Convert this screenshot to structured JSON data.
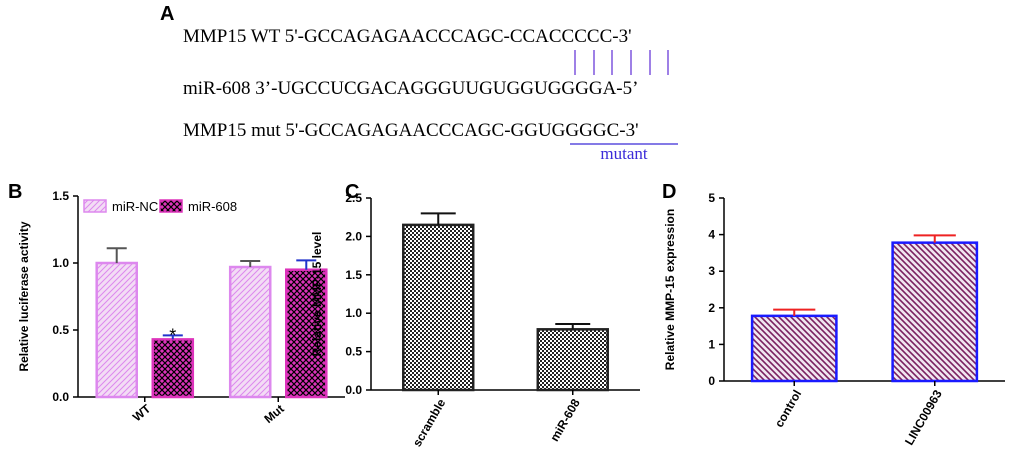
{
  "panel_a": {
    "label": "A",
    "lines": [
      "MMP15 WT 5'-GCCAGAGAACCCAGC-CCACCCCC-3'",
      "miR-608 3’-UGCCUCGACAGGGUUGUGGUGGGGA-5’",
      "MMP15 mut 5'-GCCAGAGAACCCAGC-GGUGGGGC-3'"
    ],
    "mutant_label": "mutant"
  },
  "chart_data": [
    {
      "type": "bar",
      "panel": "B",
      "ylabel": "Relative luciferase activity",
      "categories": [
        "WT",
        "Mut"
      ],
      "series": [
        {
          "name": "miR-NC",
          "color": "#dd88ee",
          "pattern": "diagonal",
          "error_color": "#555555",
          "values": [
            1.0,
            0.97
          ],
          "errors": [
            0.11,
            0.045
          ]
        },
        {
          "name": "miR-608",
          "color": "#dd33bb",
          "pattern": "cross",
          "error_color": "#2233cc",
          "values": [
            0.43,
            0.95
          ],
          "errors": [
            0.03,
            0.07
          ],
          "annotations": [
            "*",
            null
          ]
        }
      ],
      "ylim": [
        0,
        1.5
      ],
      "yticks": [
        {
          "value": 0,
          "label": "0.0"
        },
        0.5,
        {
          "value": 1,
          "label": "1.0"
        },
        1.5
      ],
      "legend": "top"
    },
    {
      "type": "bar",
      "panel": "C",
      "ylabel": "Relative MMP-15 level",
      "categories": [
        "scramble",
        "miR-608"
      ],
      "series": [
        {
          "color": "#222222",
          "pattern": "checker",
          "error_color": "#111111",
          "values": [
            2.15,
            0.79
          ],
          "errors": [
            0.15,
            0.07
          ]
        }
      ],
      "ylim": [
        0,
        2.5
      ],
      "yticks": [
        {
          "value": 0,
          "label": "0.0"
        },
        0.5,
        {
          "value": 1,
          "label": "1.0"
        },
        1.5,
        {
          "value": 2,
          "label": "2.0"
        },
        2.5
      ]
    },
    {
      "type": "bar",
      "panel": "D",
      "ylabel": "Relative MMP-15 expression",
      "categories": [
        "control",
        "LINC00963"
      ],
      "series": [
        {
          "color": "#1a1aff",
          "pattern": "diagonal-dark",
          "error_color": "#ee2222",
          "values": [
            1.78,
            3.78
          ],
          "errors": [
            0.17,
            0.2
          ]
        }
      ],
      "ylim": [
        0,
        5
      ],
      "yticks": [
        0,
        1,
        2,
        3,
        4,
        5
      ]
    }
  ]
}
